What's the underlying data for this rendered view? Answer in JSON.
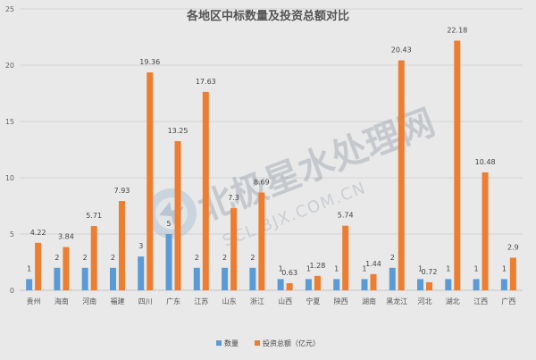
{
  "chart_data": {
    "type": "bar",
    "title": "各地区中标数量及投资总额对比",
    "categories": [
      "贵州",
      "海南",
      "河南",
      "福建",
      "四川",
      "广东",
      "江苏",
      "山东",
      "浙江",
      "山西",
      "宁夏",
      "陕西",
      "湖南",
      "黑龙江",
      "河北",
      "湖北",
      "江西",
      "广西"
    ],
    "series": [
      {
        "name": "数量",
        "color": "#5b9bd5",
        "values": [
          1,
          2,
          2,
          2,
          3,
          5,
          2,
          2,
          2,
          1,
          1,
          1,
          1,
          2,
          1,
          1,
          1,
          1
        ]
      },
      {
        "name": "投资总额（亿元）",
        "color": "#ed7d31",
        "values": [
          4.22,
          3.84,
          5.71,
          7.93,
          19.36,
          13.25,
          17.63,
          7.3,
          8.69,
          0.63,
          1.28,
          5.74,
          1.44,
          20.43,
          0.72,
          22.18,
          10.48,
          2.9
        ]
      }
    ],
    "ylim": [
      0,
      25
    ],
    "yticks": [
      0,
      5,
      10,
      15,
      20,
      25
    ],
    "grid": true,
    "legend_position": "bottom"
  },
  "watermark": {
    "text_main": "北极星水处理网",
    "text_sub": "SCL.BJX.COM.CN"
  }
}
